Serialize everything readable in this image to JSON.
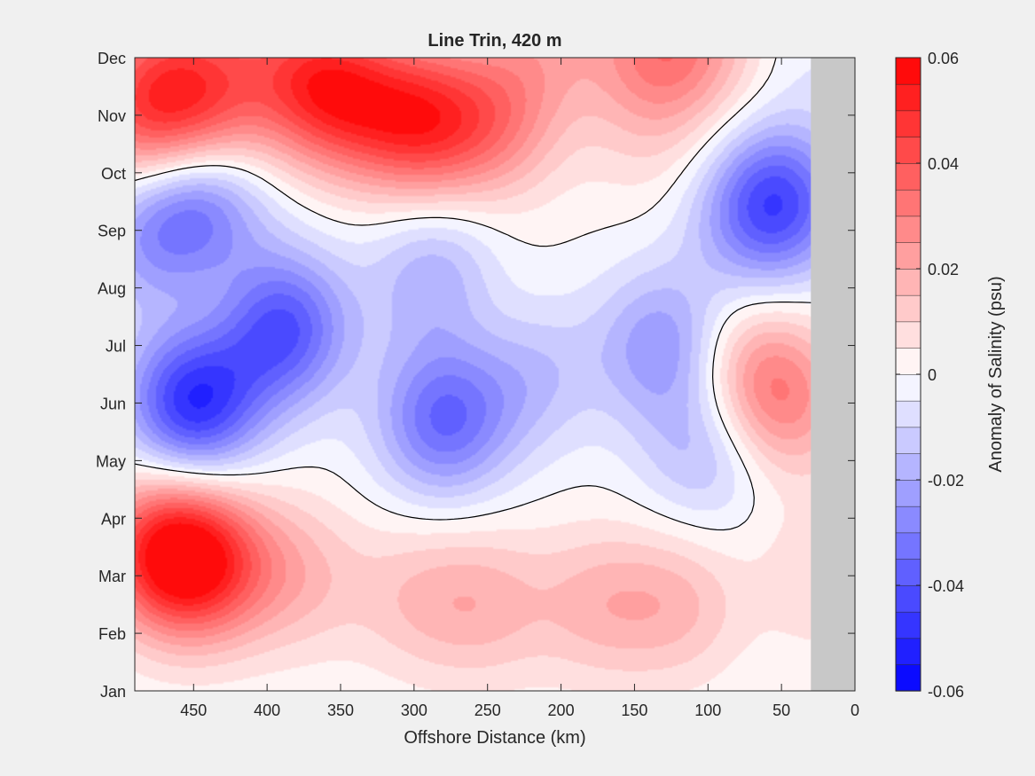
{
  "chart_data": {
    "type": "heatmap",
    "title": "Line Trin, 420 m",
    "xlabel": "Offshore Distance (km)",
    "ylabel": "",
    "x_axis": {
      "reversed": true,
      "range": [
        0,
        490
      ],
      "ticks": [
        450,
        400,
        350,
        300,
        250,
        200,
        150,
        100,
        50,
        0
      ]
    },
    "y_axis": {
      "range": [
        "Jan",
        "Dec"
      ],
      "ticks": [
        "Jan",
        "Feb",
        "Mar",
        "Apr",
        "May",
        "Jun",
        "Jul",
        "Aug",
        "Sep",
        "Oct",
        "Nov",
        "Dec"
      ]
    },
    "colorbar": {
      "label": "Anomaly of Salinity (psu)",
      "range": [
        -0.06,
        0.06
      ],
      "ticks": [
        "0.06",
        "0.04",
        "0.02",
        "0",
        "-0.02",
        "-0.04",
        "-0.06"
      ],
      "levels": 24,
      "low_color": "#0000ff",
      "mid_color": "#ffffff",
      "high_color": "#ff0000"
    },
    "no_data_color": "#c8c8c8",
    "no_data_region_km": [
      0,
      30
    ],
    "zero_contour": true,
    "anomaly_features": [
      {
        "x": 470,
        "y": 2.4,
        "value": 0.045
      },
      {
        "x": 440,
        "y": 2.2,
        "value": 0.035
      },
      {
        "x": 380,
        "y": 2.0,
        "value": 0.015
      },
      {
        "x": 300,
        "y": 1.6,
        "value": 0.012
      },
      {
        "x": 250,
        "y": 1.5,
        "value": 0.015
      },
      {
        "x": 175,
        "y": 1.5,
        "value": 0.015
      },
      {
        "x": 120,
        "y": 1.5,
        "value": 0.015
      },
      {
        "x": 20,
        "y": 2.0,
        "value": 0.01
      },
      {
        "x": 450,
        "y": 5.0,
        "value": -0.05
      },
      {
        "x": 390,
        "y": 6.3,
        "value": -0.042
      },
      {
        "x": 445,
        "y": 8.4,
        "value": -0.03
      },
      {
        "x": 480,
        "y": 7.8,
        "value": -0.018
      },
      {
        "x": 280,
        "y": 4.7,
        "value": -0.035
      },
      {
        "x": 285,
        "y": 7.2,
        "value": -0.02
      },
      {
        "x": 220,
        "y": 5.5,
        "value": -0.015
      },
      {
        "x": 130,
        "y": 6.0,
        "value": -0.025
      },
      {
        "x": 100,
        "y": 4.2,
        "value": -0.018
      },
      {
        "x": 50,
        "y": 8.5,
        "value": -0.035
      },
      {
        "x": 75,
        "y": 8.3,
        "value": -0.015
      },
      {
        "x": 50,
        "y": 5.0,
        "value": 0.025
      },
      {
        "x": 75,
        "y": 5.6,
        "value": 0.015
      },
      {
        "x": 435,
        "y": 6.8,
        "value": 0.008
      },
      {
        "x": 250,
        "y": 6.6,
        "value": 0.005
      },
      {
        "x": 295,
        "y": 9.9,
        "value": 0.04
      },
      {
        "x": 245,
        "y": 9.9,
        "value": 0.025
      },
      {
        "x": 370,
        "y": 10.6,
        "value": 0.035
      },
      {
        "x": 440,
        "y": 10.2,
        "value": 0.03
      },
      {
        "x": 485,
        "y": 10.0,
        "value": 0.032
      },
      {
        "x": 340,
        "y": 10.2,
        "value": 0.025
      },
      {
        "x": 130,
        "y": 11.2,
        "value": 0.03
      },
      {
        "x": 80,
        "y": 11.2,
        "value": 0.01
      },
      {
        "x": 210,
        "y": 11.3,
        "value": 0.015
      },
      {
        "x": 470,
        "y": 11.0,
        "value": 0.012
      },
      {
        "x": 150,
        "y": 9.8,
        "value": 0.006
      },
      {
        "x": 110,
        "y": 9.2,
        "value": 0.004
      },
      {
        "x": 45,
        "y": 11.3,
        "value": -0.008
      },
      {
        "x": 420,
        "y": 11.8,
        "value": 0.01
      }
    ]
  }
}
